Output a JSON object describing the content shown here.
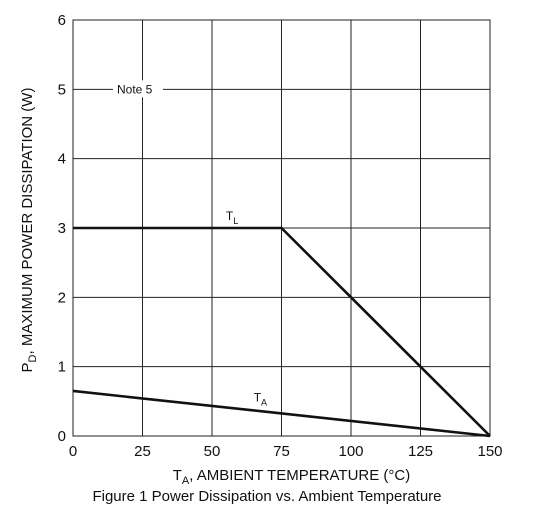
{
  "chart_data": {
    "type": "line",
    "caption": "Figure 1  Power Dissipation vs. Ambient Temperature",
    "xlabel": {
      "symbol": "T",
      "sub": "A",
      "text": ", AMBIENT TEMPERATURE (°C)"
    },
    "ylabel": {
      "symbol": "P",
      "sub": "D",
      "text": ", MAXIMUM POWER DISSIPATION (W)"
    },
    "xlim": [
      0,
      150
    ],
    "ylim": [
      0,
      6
    ],
    "x_ticks": [
      0,
      25,
      50,
      75,
      100,
      125,
      150
    ],
    "y_ticks": [
      0,
      1,
      2,
      3,
      4,
      5,
      6
    ],
    "grid": true,
    "vertical_gridlines": [
      0,
      25,
      50,
      75,
      100,
      125,
      150
    ],
    "horizontal_gridlines": [
      0,
      1,
      2,
      3,
      4,
      5,
      6
    ],
    "note": {
      "text": "Note 5",
      "y": 5
    },
    "series": [
      {
        "name_symbol": "T",
        "name_sub": "L",
        "x": [
          0,
          75,
          150
        ],
        "y": [
          3,
          3,
          0
        ],
        "label_at": [
          55,
          3
        ]
      },
      {
        "name_symbol": "T",
        "name_sub": "A",
        "x": [
          0,
          150
        ],
        "y": [
          0.65,
          0
        ],
        "label_at": [
          65,
          0.38
        ]
      }
    ]
  }
}
